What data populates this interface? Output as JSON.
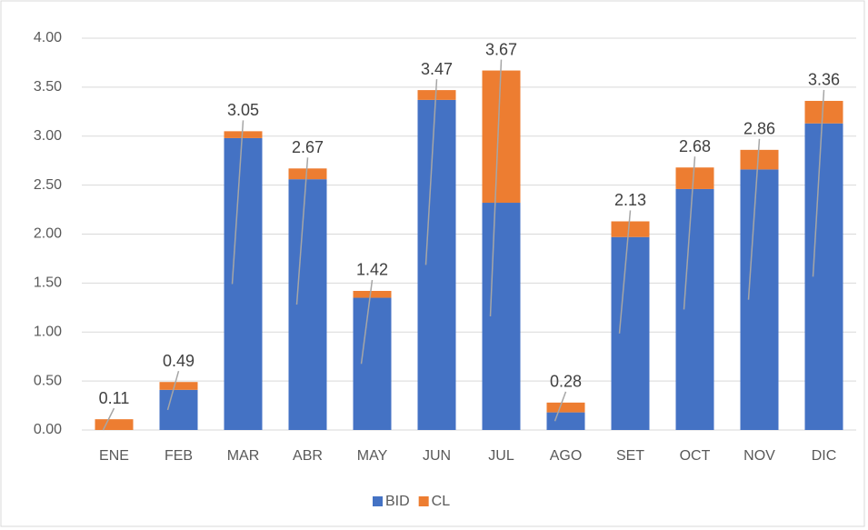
{
  "chart_data": {
    "type": "stacked_bar",
    "categories": [
      "ENE",
      "FEB",
      "MAR",
      "ABR",
      "MAY",
      "JUN",
      "JUL",
      "AGO",
      "SET",
      "OCT",
      "NOV",
      "DIC"
    ],
    "series": [
      {
        "name": "BID",
        "color": "#4472c4",
        "values": [
          0,
          0.41,
          2.98,
          2.56,
          1.35,
          3.37,
          2.32,
          0.18,
          1.97,
          2.46,
          2.66,
          3.13
        ]
      },
      {
        "name": "CL",
        "color": "#ed7d31",
        "values": [
          0.11,
          0.08,
          0.07,
          0.11,
          0.07,
          0.1,
          1.35,
          0.1,
          0.16,
          0.22,
          0.2,
          0.23
        ]
      }
    ],
    "totals": [
      {
        "value": 0.11,
        "label": "0.11"
      },
      {
        "value": 0.49,
        "label": "0.49"
      },
      {
        "value": 3.05,
        "label": "3.05"
      },
      {
        "value": 2.67,
        "label": "2.67"
      },
      {
        "value": 1.42,
        "label": "1.42"
      },
      {
        "value": 3.47,
        "label": "3.47"
      },
      {
        "value": 3.67,
        "label": "3.67"
      },
      {
        "value": 0.28,
        "label": "0.28"
      },
      {
        "value": 2.13,
        "label": "2.13"
      },
      {
        "value": 2.68,
        "label": "2.68"
      },
      {
        "value": 2.86,
        "label": "2.86"
      },
      {
        "value": 3.36,
        "label": "3.36"
      }
    ],
    "ylim": [
      0,
      4
    ],
    "yticks": [
      {
        "value": 0,
        "label": "0.00"
      },
      {
        "value": 0.5,
        "label": "0.50"
      },
      {
        "value": 1,
        "label": "1.00"
      },
      {
        "value": 1.5,
        "label": "1.50"
      },
      {
        "value": 2,
        "label": "2.00"
      },
      {
        "value": 2.5,
        "label": "2.50"
      },
      {
        "value": 3,
        "label": "3.00"
      },
      {
        "value": 3.5,
        "label": "3.50"
      },
      {
        "value": 4,
        "label": "4.00"
      }
    ],
    "grid": true,
    "legend": "bottom"
  }
}
